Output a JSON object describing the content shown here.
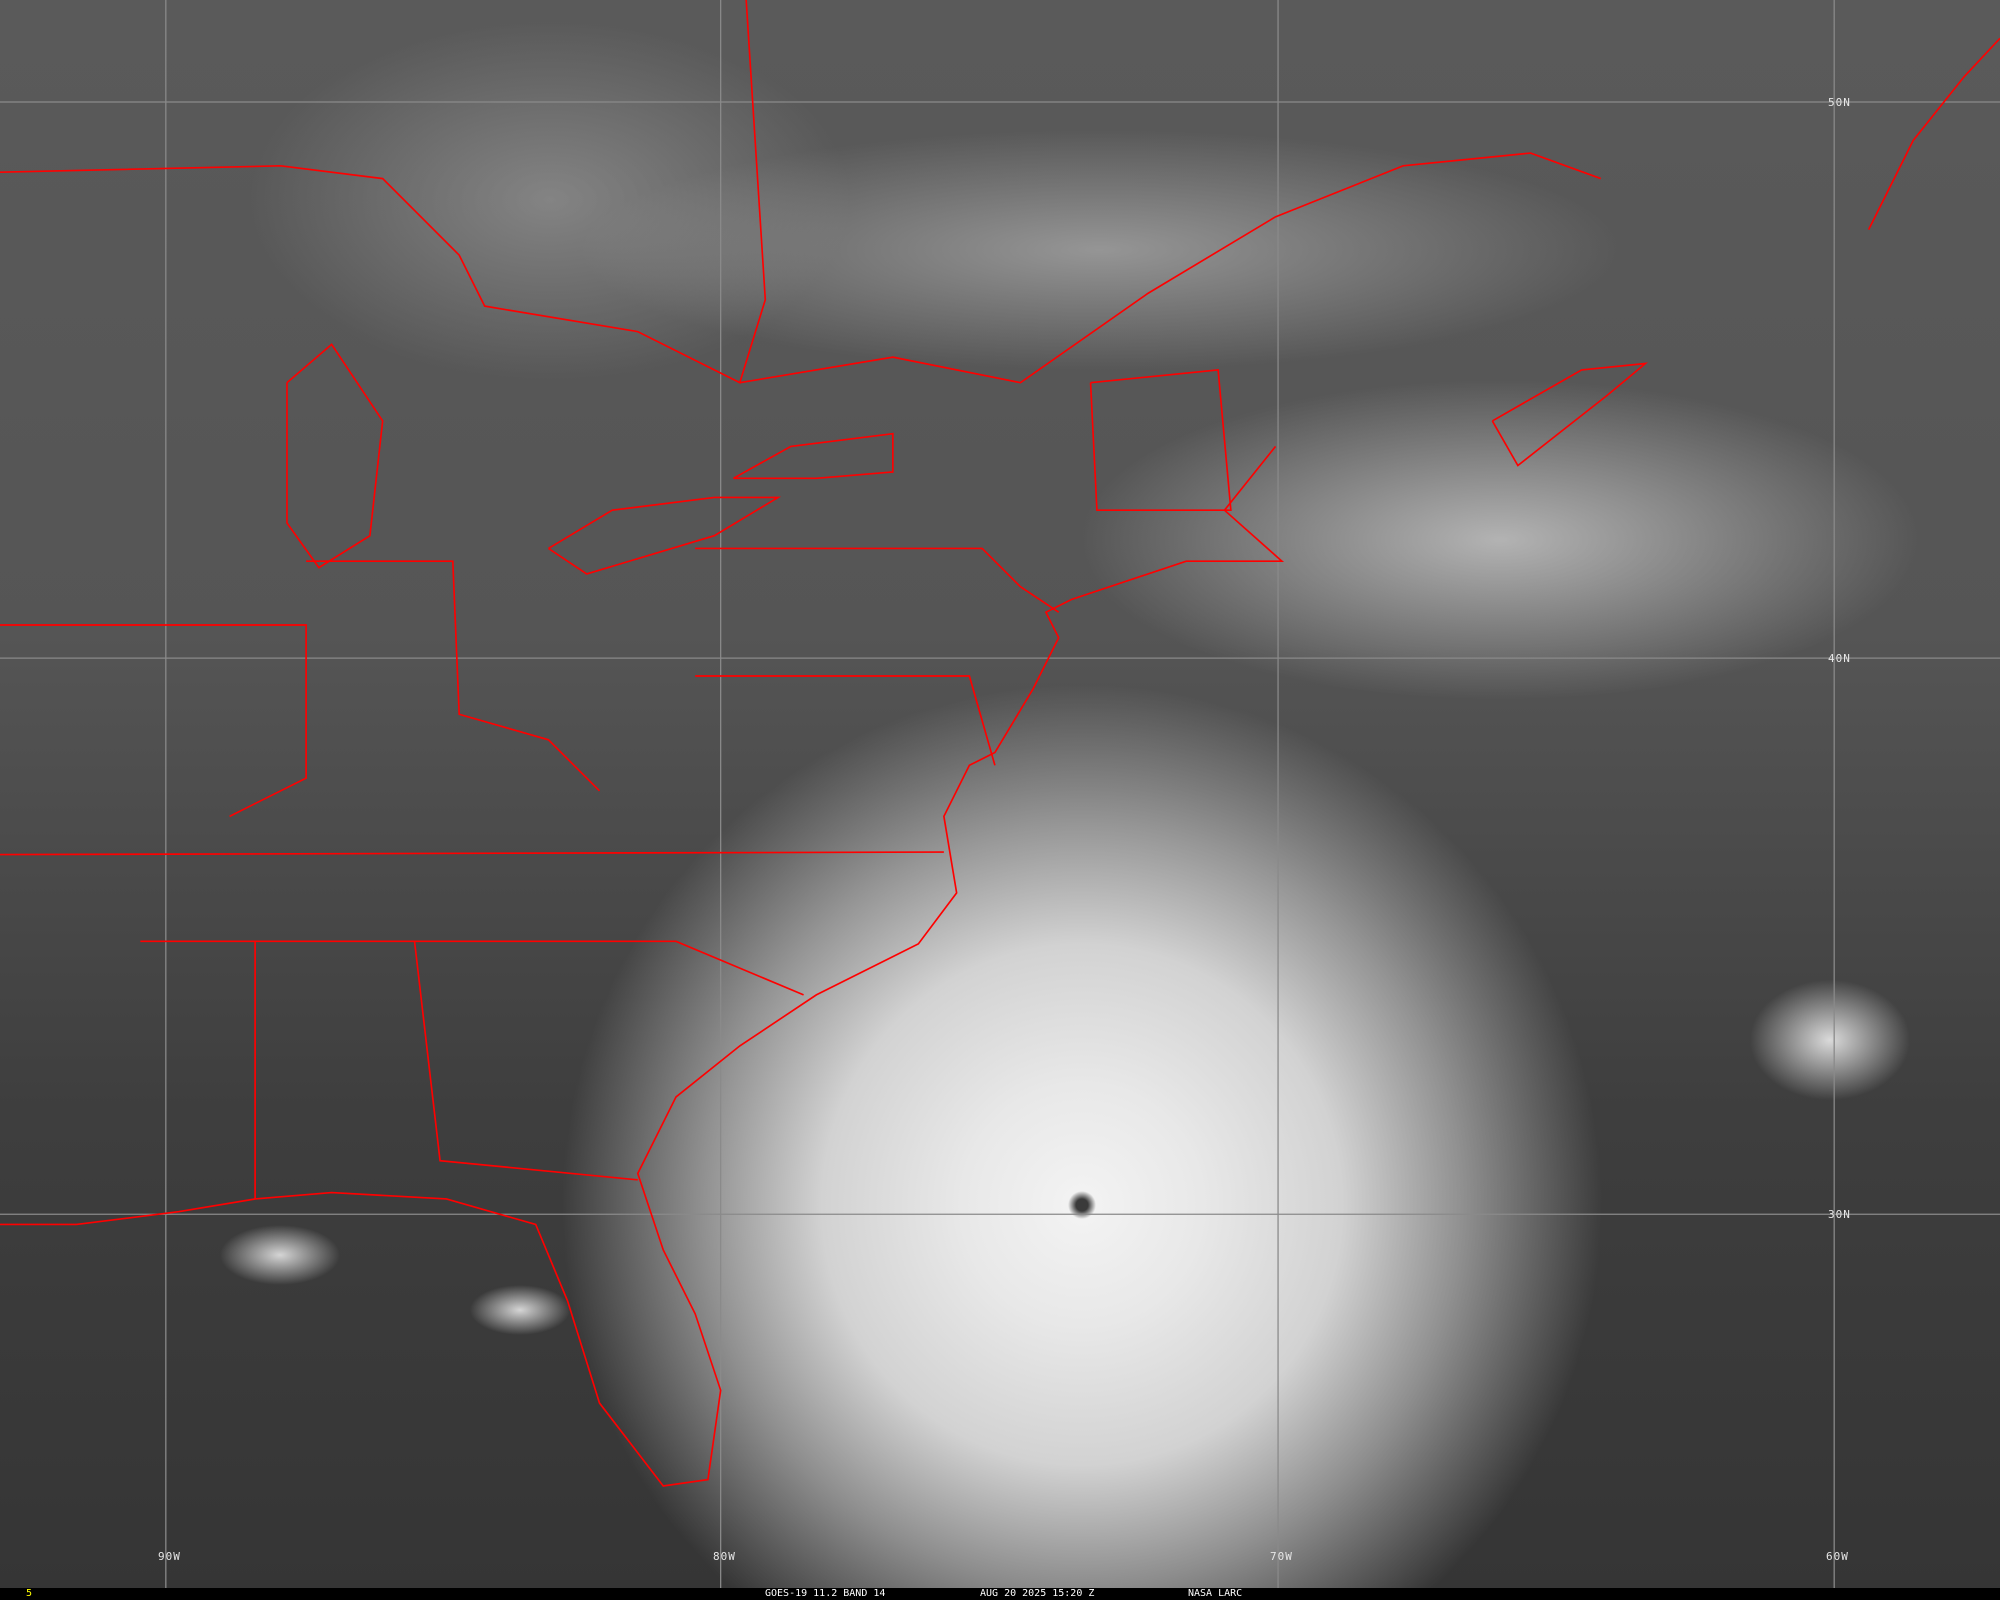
{
  "frame_number": "5",
  "caption": {
    "satellite": "GOES-19 11.2 BAND 14",
    "datetime": "AUG 20 2025 15:20 Z",
    "source": "NASA LARC"
  },
  "longitude_labels": [
    "90W",
    "80W",
    "70W",
    "60W"
  ],
  "latitude_labels": [
    "50N",
    "40N",
    "30N"
  ],
  "colors": {
    "borders": "#ff0000",
    "frame_number": "#ffff00",
    "grid": "#8a8a8a"
  }
}
